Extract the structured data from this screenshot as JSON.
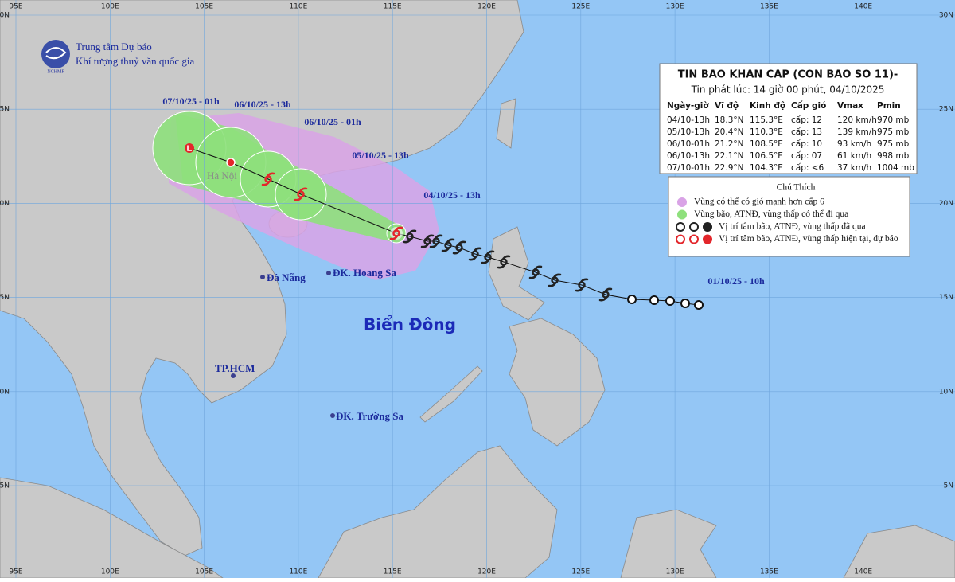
{
  "header": {
    "logo_text": "NCHMF",
    "org": [
      "Trung tâm Dự báo",
      "Khí tượng thuỷ văn quốc gia"
    ]
  },
  "grid": {
    "lon_labels": [
      "95E",
      "100E",
      "105E",
      "110E",
      "115E",
      "120E",
      "125E",
      "130E",
      "135E",
      "140E"
    ],
    "lat_labels": [
      "30N",
      "25N",
      "20N",
      "15N",
      "10N",
      "5N"
    ]
  },
  "track_labels": [
    "07/10/25 - 01h",
    "06/10/25 - 13h",
    "06/10/25 - 01h",
    "05/10/25 - 13h",
    "04/10/25 - 13h",
    "01/10/25 - 10h"
  ],
  "places": [
    "Hà Nội",
    "Đà Nẵng",
    "ĐK. Hoang Sa",
    "TP.HCM",
    "ĐK. Trường Sa"
  ],
  "sea_label": "Biển Đông",
  "bulletin": {
    "title": "TIN BAO KHAN CAP (CON BAO SO 11)-",
    "issued": "Tin phát lúc: 14 giờ 00 phút, 04/10/2025",
    "columns": [
      "Ngày-giờ",
      "Vĩ độ",
      "Kinh độ",
      "Cấp gió",
      "Vmax",
      "Pmin"
    ],
    "rows": [
      [
        "04/10-13h",
        "18.3°N",
        "115.3°E",
        "cấp: 12",
        "120 km/h",
        "970 mb"
      ],
      [
        "05/10-13h",
        "20.4°N",
        "110.3°E",
        "cấp: 13",
        "139 km/h",
        "975 mb"
      ],
      [
        "06/10-01h",
        "21.2°N",
        "108.5°E",
        "cấp: 10",
        "93 km/h",
        "975 mb"
      ],
      [
        "06/10-13h",
        "22.1°N",
        "106.5°E",
        "cấp: 07",
        "61 km/h",
        "998 mb"
      ],
      [
        "07/10-01h",
        "22.9°N",
        "104.3°E",
        "cấp: <6",
        "37 km/h",
        "1004 mb"
      ]
    ]
  },
  "legend": {
    "title": "Chú Thích",
    "items": [
      "Vùng có thể có gió mạnh hơn cấp 6",
      "Vùng bão, ATNĐ, vùng thấp có thể đi qua",
      "Vị trí tâm bão, ATNĐ, vùng thấp đã qua",
      "Vị trí tâm bão, ATNĐ, vùng thấp hiện tại, dự báo"
    ]
  }
}
